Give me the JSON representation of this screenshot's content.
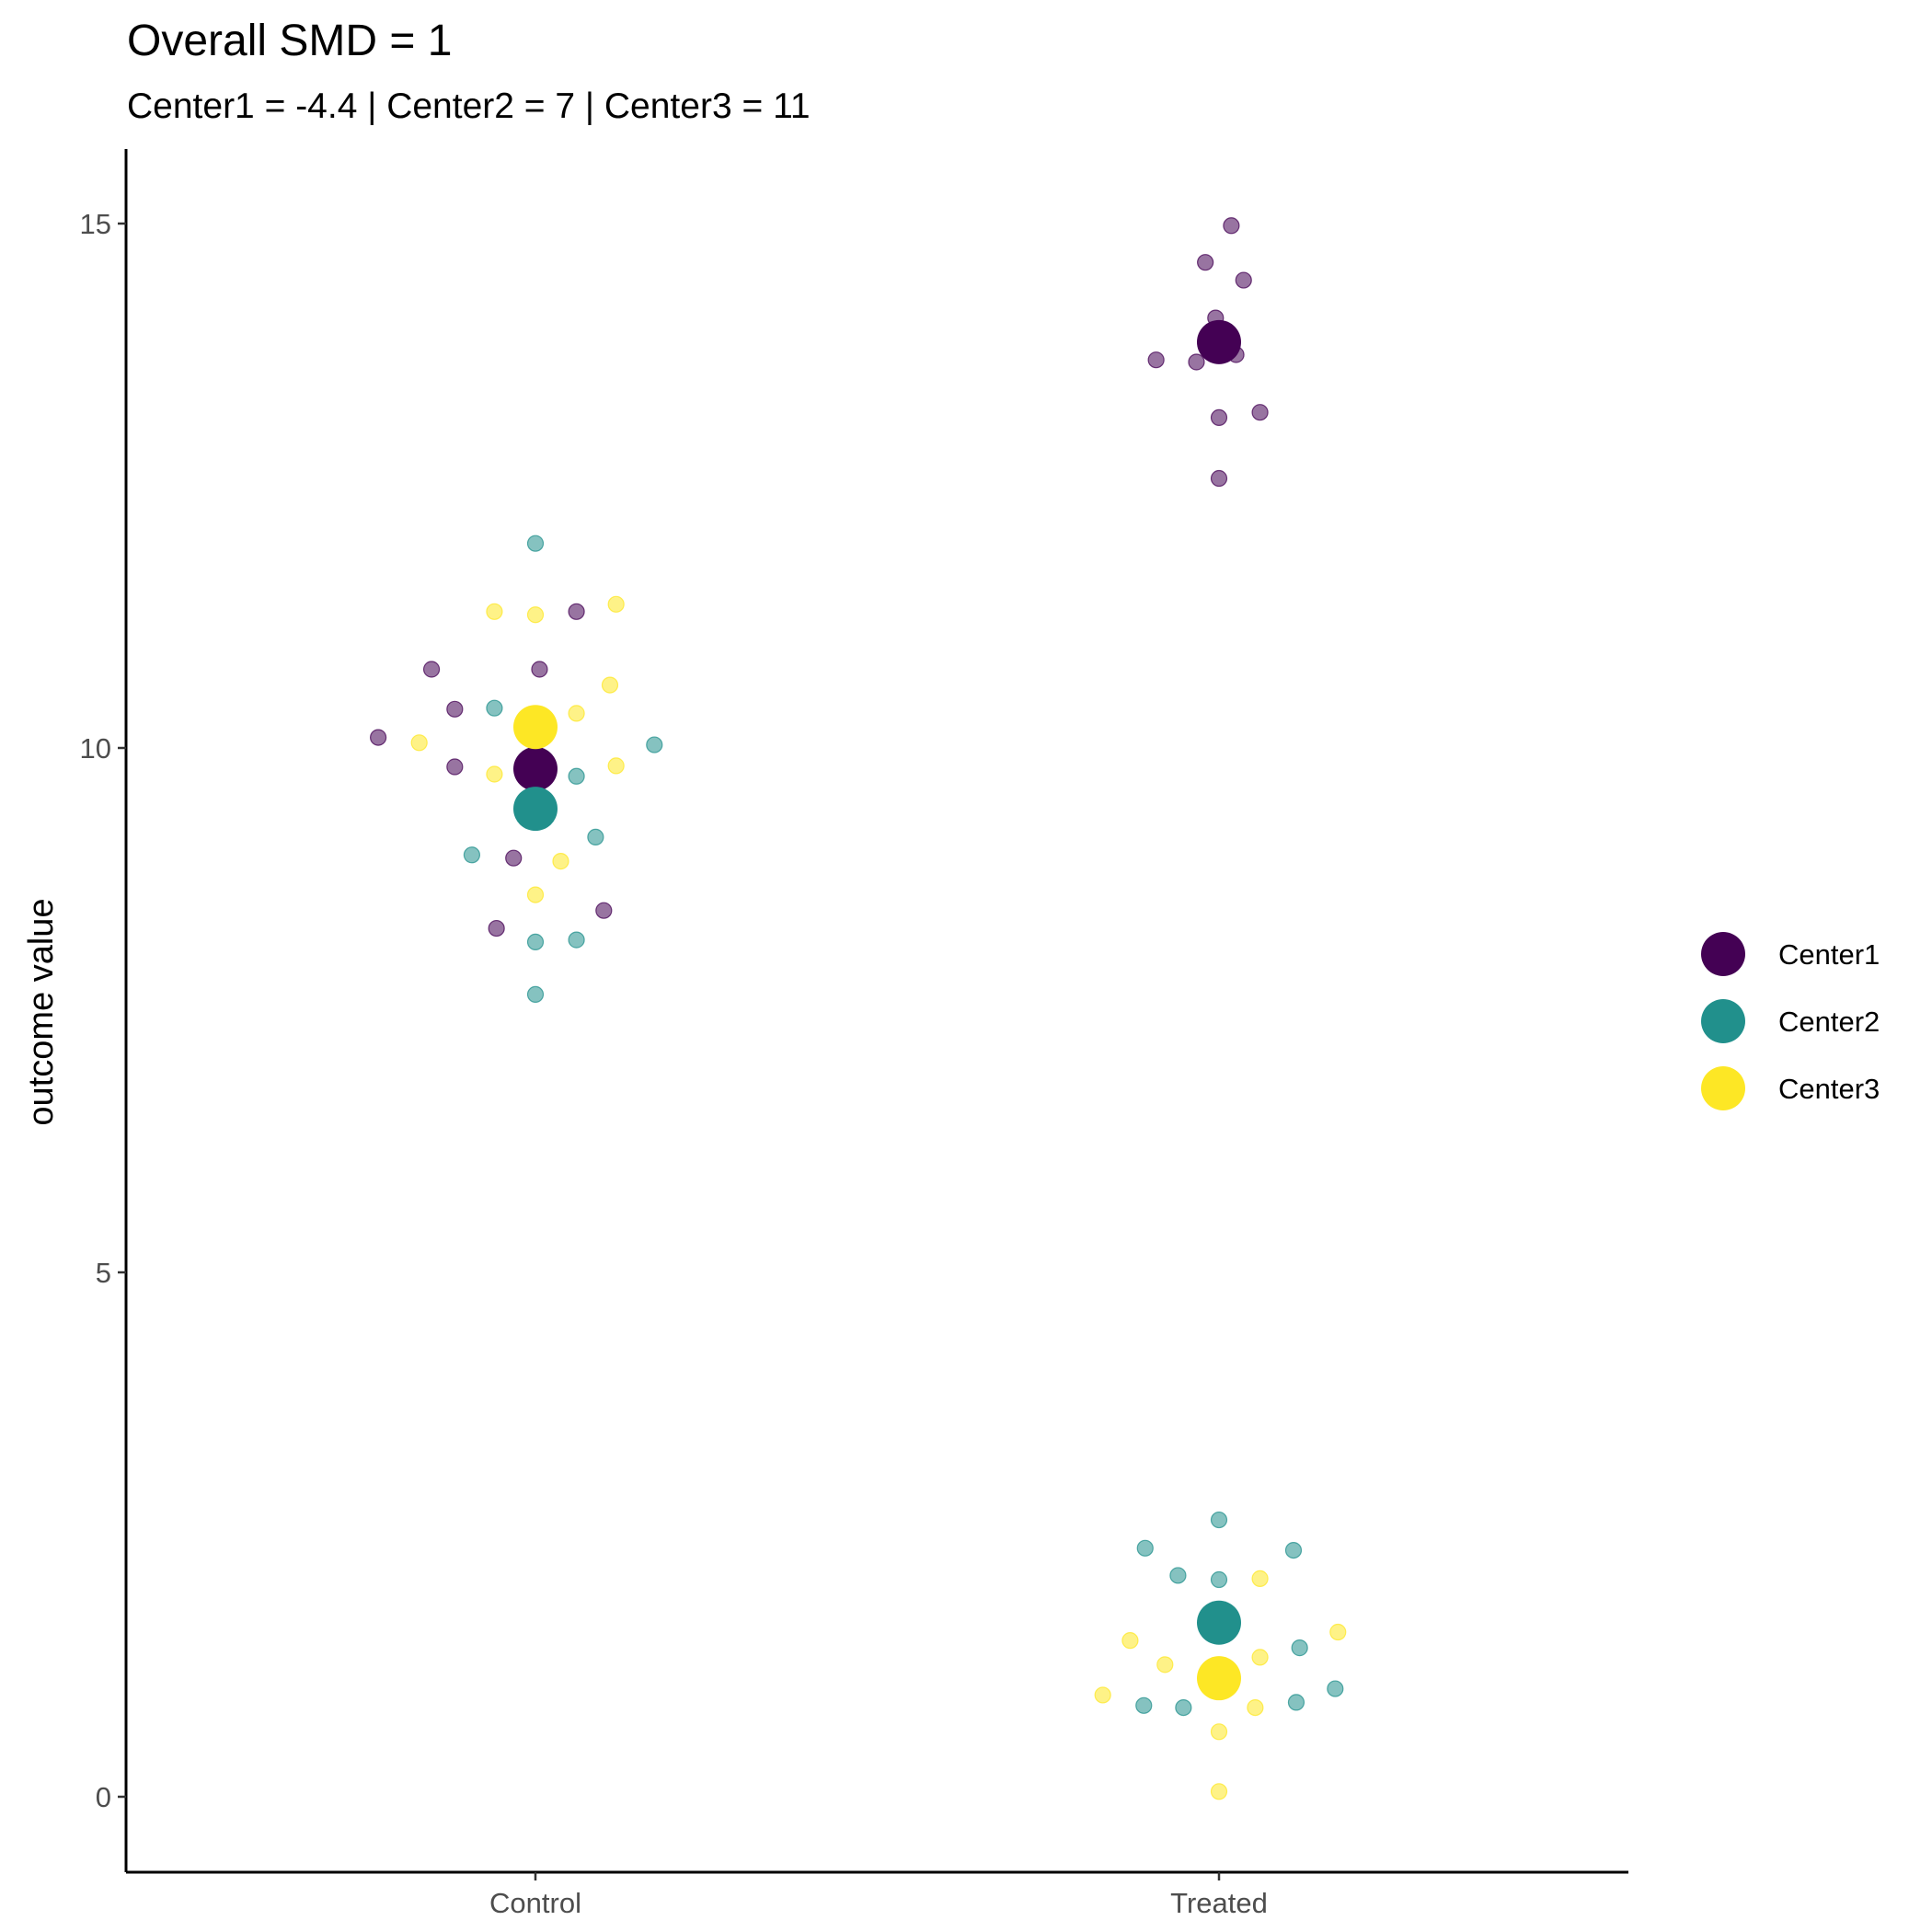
{
  "chart_data": {
    "type": "scatter",
    "title": "Overall SMD = 1",
    "subtitle": "Center1 = -4.4 | Center2 = 7 | Center3 = 11",
    "xlabel": "",
    "ylabel": "outcome value",
    "categories": [
      "Control",
      "Treated"
    ],
    "ylim": [
      -1.5,
      15.7
    ],
    "yticks": [
      0,
      5,
      10,
      15
    ],
    "grid": false,
    "legend_position": "right",
    "series": [
      {
        "name": "Center1",
        "color": "#440154",
        "mean": {
          "Control": 9.8,
          "Treated": 13.87
        },
        "points": [
          {
            "group": "Control",
            "offset": -0.23,
            "y": 10.1
          },
          {
            "group": "Control",
            "offset": -0.152,
            "y": 10.75
          },
          {
            "group": "Control",
            "offset": -0.118,
            "y": 10.37
          },
          {
            "group": "Control",
            "offset": -0.118,
            "y": 9.82
          },
          {
            "group": "Control",
            "offset": 0.006,
            "y": 10.75
          },
          {
            "group": "Control",
            "offset": 0.06,
            "y": 11.3
          },
          {
            "group": "Control",
            "offset": -0.032,
            "y": 8.95
          },
          {
            "group": "Control",
            "offset": -0.057,
            "y": 8.28
          },
          {
            "group": "Control",
            "offset": 0.1,
            "y": 8.45
          },
          {
            "group": "Treated",
            "offset": 0.018,
            "y": 14.98
          },
          {
            "group": "Treated",
            "offset": -0.02,
            "y": 14.63
          },
          {
            "group": "Treated",
            "offset": 0.036,
            "y": 14.46
          },
          {
            "group": "Treated",
            "offset": -0.005,
            "y": 14.1
          },
          {
            "group": "Treated",
            "offset": -0.092,
            "y": 13.7
          },
          {
            "group": "Treated",
            "offset": -0.033,
            "y": 13.68
          },
          {
            "group": "Treated",
            "offset": 0.025,
            "y": 13.75
          },
          {
            "group": "Treated",
            "offset": 0.0,
            "y": 13.15
          },
          {
            "group": "Treated",
            "offset": 0.06,
            "y": 13.2
          },
          {
            "group": "Treated",
            "offset": 0.0,
            "y": 12.57
          }
        ]
      },
      {
        "name": "Center2",
        "color": "#21908C",
        "mean": {
          "Control": 9.42,
          "Treated": 1.66
        },
        "points": [
          {
            "group": "Control",
            "offset": 0.0,
            "y": 11.95
          },
          {
            "group": "Control",
            "offset": -0.06,
            "y": 10.38
          },
          {
            "group": "Control",
            "offset": 0.174,
            "y": 10.03
          },
          {
            "group": "Control",
            "offset": 0.06,
            "y": 9.73
          },
          {
            "group": "Control",
            "offset": -0.093,
            "y": 8.98
          },
          {
            "group": "Control",
            "offset": 0.088,
            "y": 9.15
          },
          {
            "group": "Control",
            "offset": 0.0,
            "y": 8.15
          },
          {
            "group": "Control",
            "offset": 0.06,
            "y": 8.17
          },
          {
            "group": "Control",
            "offset": 0.0,
            "y": 7.65
          },
          {
            "group": "Treated",
            "offset": 0.0,
            "y": 2.64
          },
          {
            "group": "Treated",
            "offset": -0.108,
            "y": 2.37
          },
          {
            "group": "Treated",
            "offset": 0.109,
            "y": 2.35
          },
          {
            "group": "Treated",
            "offset": -0.06,
            "y": 2.11
          },
          {
            "group": "Treated",
            "offset": 0.0,
            "y": 2.07
          },
          {
            "group": "Treated",
            "offset": 0.118,
            "y": 1.42
          },
          {
            "group": "Treated",
            "offset": -0.11,
            "y": 0.87
          },
          {
            "group": "Treated",
            "offset": -0.052,
            "y": 0.85
          },
          {
            "group": "Treated",
            "offset": 0.113,
            "y": 0.9
          },
          {
            "group": "Treated",
            "offset": 0.17,
            "y": 1.03
          }
        ]
      },
      {
        "name": "Center3",
        "color": "#FDE725",
        "mean": {
          "Control": 10.2,
          "Treated": 1.13
        },
        "points": [
          {
            "group": "Control",
            "offset": -0.06,
            "y": 11.3
          },
          {
            "group": "Control",
            "offset": 0.0,
            "y": 11.27
          },
          {
            "group": "Control",
            "offset": 0.118,
            "y": 11.37
          },
          {
            "group": "Control",
            "offset": 0.109,
            "y": 10.6
          },
          {
            "group": "Control",
            "offset": 0.06,
            "y": 10.33
          },
          {
            "group": "Control",
            "offset": -0.17,
            "y": 10.05
          },
          {
            "group": "Control",
            "offset": -0.06,
            "y": 9.75
          },
          {
            "group": "Control",
            "offset": 0.118,
            "y": 9.83
          },
          {
            "group": "Control",
            "offset": 0.037,
            "y": 8.92
          },
          {
            "group": "Control",
            "offset": 0.0,
            "y": 8.6
          },
          {
            "group": "Treated",
            "offset": 0.06,
            "y": 2.08
          },
          {
            "group": "Treated",
            "offset": -0.13,
            "y": 1.49
          },
          {
            "group": "Treated",
            "offset": 0.174,
            "y": 1.57
          },
          {
            "group": "Treated",
            "offset": -0.079,
            "y": 1.26
          },
          {
            "group": "Treated",
            "offset": 0.06,
            "y": 1.33
          },
          {
            "group": "Treated",
            "offset": -0.17,
            "y": 0.97
          },
          {
            "group": "Treated",
            "offset": 0.053,
            "y": 0.85
          },
          {
            "group": "Treated",
            "offset": 0.0,
            "y": 0.62
          },
          {
            "group": "Treated",
            "offset": 0.0,
            "y": 0.05
          }
        ]
      }
    ]
  }
}
